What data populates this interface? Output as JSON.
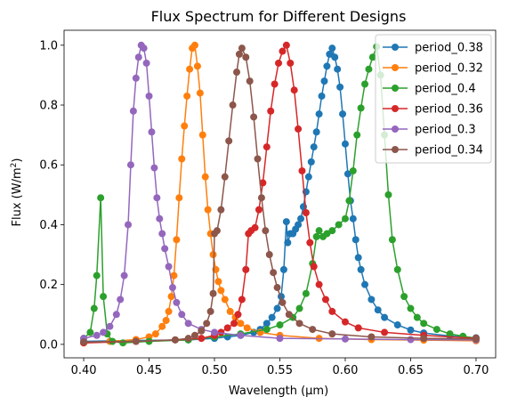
{
  "chart_data": {
    "type": "line",
    "title": "Flux Spectrum for Different Designs",
    "xlabel": "Wavelength (μm)",
    "ylabel_main": "Flux (W/m",
    "ylabel_sup": "2",
    "ylabel_close": ")",
    "xlim": [
      0.385,
      0.715
    ],
    "ylim": [
      -0.045,
      1.05
    ],
    "xticks": [
      0.4,
      0.45,
      0.5,
      0.55,
      0.6,
      0.65,
      0.7
    ],
    "xtick_labels": [
      "0.40",
      "0.45",
      "0.50",
      "0.55",
      "0.60",
      "0.65",
      "0.70"
    ],
    "yticks": [
      0.0,
      0.2,
      0.4,
      0.6,
      0.8,
      1.0
    ],
    "ytick_labels": [
      "0.0",
      "0.2",
      "0.4",
      "0.6",
      "0.8",
      "1.0"
    ],
    "grid": false,
    "legend_position": "top-right",
    "series": [
      {
        "name": "period_0.38",
        "color": "#1f77b4",
        "points": [
          [
            0.4,
            0.01
          ],
          [
            0.44,
            0.013
          ],
          [
            0.48,
            0.015
          ],
          [
            0.5,
            0.02
          ],
          [
            0.51,
            0.025
          ],
          [
            0.52,
            0.03
          ],
          [
            0.53,
            0.04
          ],
          [
            0.535,
            0.05
          ],
          [
            0.54,
            0.07
          ],
          [
            0.544,
            0.09
          ],
          [
            0.548,
            0.12
          ],
          [
            0.551,
            0.16
          ],
          [
            0.553,
            0.25
          ],
          [
            0.555,
            0.41
          ],
          [
            0.556,
            0.34
          ],
          [
            0.558,
            0.37
          ],
          [
            0.56,
            0.37
          ],
          [
            0.562,
            0.385
          ],
          [
            0.564,
            0.4
          ],
          [
            0.566,
            0.42
          ],
          [
            0.568,
            0.46
          ],
          [
            0.57,
            0.51
          ],
          [
            0.572,
            0.56
          ],
          [
            0.574,
            0.61
          ],
          [
            0.576,
            0.66
          ],
          [
            0.578,
            0.71
          ],
          [
            0.58,
            0.77
          ],
          [
            0.582,
            0.83
          ],
          [
            0.584,
            0.88
          ],
          [
            0.586,
            0.93
          ],
          [
            0.588,
            0.97
          ],
          [
            0.59,
            0.99
          ],
          [
            0.592,
            0.96
          ],
          [
            0.594,
            0.92
          ],
          [
            0.596,
            0.86
          ],
          [
            0.598,
            0.77
          ],
          [
            0.6,
            0.67
          ],
          [
            0.602,
            0.57
          ],
          [
            0.604,
            0.48
          ],
          [
            0.606,
            0.42
          ],
          [
            0.608,
            0.35
          ],
          [
            0.61,
            0.29
          ],
          [
            0.612,
            0.25
          ],
          [
            0.615,
            0.2
          ],
          [
            0.62,
            0.15
          ],
          [
            0.625,
            0.115
          ],
          [
            0.63,
            0.09
          ],
          [
            0.64,
            0.065
          ],
          [
            0.65,
            0.048
          ],
          [
            0.66,
            0.038
          ],
          [
            0.68,
            0.028
          ],
          [
            0.7,
            0.022
          ]
        ]
      },
      {
        "name": "period_0.32",
        "color": "#ff7f0e",
        "points": [
          [
            0.4,
            0.005
          ],
          [
            0.42,
            0.01
          ],
          [
            0.44,
            0.016
          ],
          [
            0.45,
            0.025
          ],
          [
            0.455,
            0.035
          ],
          [
            0.46,
            0.06
          ],
          [
            0.463,
            0.08
          ],
          [
            0.465,
            0.11
          ],
          [
            0.467,
            0.16
          ],
          [
            0.469,
            0.23
          ],
          [
            0.471,
            0.35
          ],
          [
            0.473,
            0.49
          ],
          [
            0.475,
            0.62
          ],
          [
            0.477,
            0.73
          ],
          [
            0.479,
            0.83
          ],
          [
            0.481,
            0.92
          ],
          [
            0.483,
            0.99
          ],
          [
            0.485,
            1.0
          ],
          [
            0.487,
            0.93
          ],
          [
            0.489,
            0.84
          ],
          [
            0.491,
            0.7
          ],
          [
            0.493,
            0.56
          ],
          [
            0.495,
            0.45
          ],
          [
            0.497,
            0.37
          ],
          [
            0.499,
            0.3
          ],
          [
            0.501,
            0.25
          ],
          [
            0.503,
            0.21
          ],
          [
            0.505,
            0.18
          ],
          [
            0.508,
            0.15
          ],
          [
            0.512,
            0.11
          ],
          [
            0.516,
            0.09
          ],
          [
            0.52,
            0.07
          ],
          [
            0.525,
            0.055
          ],
          [
            0.535,
            0.04
          ],
          [
            0.55,
            0.03
          ],
          [
            0.58,
            0.02
          ],
          [
            0.62,
            0.016
          ],
          [
            0.66,
            0.014
          ],
          [
            0.7,
            0.012
          ]
        ]
      },
      {
        "name": "period_0.4",
        "color": "#2ca02c",
        "points": [
          [
            0.4,
            0.02
          ],
          [
            0.405,
            0.04
          ],
          [
            0.408,
            0.12
          ],
          [
            0.41,
            0.23
          ],
          [
            0.413,
            0.49
          ],
          [
            0.415,
            0.16
          ],
          [
            0.418,
            0.035
          ],
          [
            0.422,
            0.01
          ],
          [
            0.43,
            0.005
          ],
          [
            0.45,
            0.01
          ],
          [
            0.48,
            0.015
          ],
          [
            0.5,
            0.025
          ],
          [
            0.52,
            0.035
          ],
          [
            0.54,
            0.05
          ],
          [
            0.55,
            0.065
          ],
          [
            0.56,
            0.09
          ],
          [
            0.565,
            0.12
          ],
          [
            0.57,
            0.17
          ],
          [
            0.575,
            0.27
          ],
          [
            0.578,
            0.36
          ],
          [
            0.58,
            0.38
          ],
          [
            0.583,
            0.36
          ],
          [
            0.586,
            0.37
          ],
          [
            0.59,
            0.38
          ],
          [
            0.595,
            0.4
          ],
          [
            0.6,
            0.42
          ],
          [
            0.603,
            0.48
          ],
          [
            0.606,
            0.58
          ],
          [
            0.609,
            0.7
          ],
          [
            0.612,
            0.79
          ],
          [
            0.615,
            0.87
          ],
          [
            0.618,
            0.92
          ],
          [
            0.621,
            0.96
          ],
          [
            0.624,
            0.995
          ],
          [
            0.627,
            0.9
          ],
          [
            0.63,
            0.7
          ],
          [
            0.633,
            0.5
          ],
          [
            0.636,
            0.35
          ],
          [
            0.64,
            0.25
          ],
          [
            0.645,
            0.16
          ],
          [
            0.65,
            0.12
          ],
          [
            0.655,
            0.09
          ],
          [
            0.66,
            0.07
          ],
          [
            0.67,
            0.05
          ],
          [
            0.68,
            0.035
          ],
          [
            0.69,
            0.027
          ],
          [
            0.7,
            0.02
          ]
        ]
      },
      {
        "name": "period_0.36",
        "color": "#d62728",
        "points": [
          [
            0.4,
            0.005
          ],
          [
            0.44,
            0.01
          ],
          [
            0.47,
            0.015
          ],
          [
            0.49,
            0.02
          ],
          [
            0.5,
            0.03
          ],
          [
            0.505,
            0.04
          ],
          [
            0.51,
            0.055
          ],
          [
            0.515,
            0.07
          ],
          [
            0.518,
            0.1
          ],
          [
            0.521,
            0.15
          ],
          [
            0.524,
            0.25
          ],
          [
            0.526,
            0.37
          ],
          [
            0.528,
            0.38
          ],
          [
            0.531,
            0.39
          ],
          [
            0.534,
            0.45
          ],
          [
            0.537,
            0.54
          ],
          [
            0.54,
            0.66
          ],
          [
            0.543,
            0.78
          ],
          [
            0.546,
            0.87
          ],
          [
            0.549,
            0.94
          ],
          [
            0.552,
            0.98
          ],
          [
            0.555,
            1.0
          ],
          [
            0.558,
            0.94
          ],
          [
            0.561,
            0.85
          ],
          [
            0.564,
            0.72
          ],
          [
            0.567,
            0.58
          ],
          [
            0.57,
            0.44
          ],
          [
            0.573,
            0.34
          ],
          [
            0.576,
            0.26
          ],
          [
            0.58,
            0.2
          ],
          [
            0.585,
            0.15
          ],
          [
            0.59,
            0.11
          ],
          [
            0.6,
            0.075
          ],
          [
            0.61,
            0.055
          ],
          [
            0.63,
            0.04
          ],
          [
            0.66,
            0.03
          ],
          [
            0.7,
            0.02
          ]
        ]
      },
      {
        "name": "period_0.3",
        "color": "#9467bd",
        "points": [
          [
            0.4,
            0.02
          ],
          [
            0.41,
            0.03
          ],
          [
            0.415,
            0.04
          ],
          [
            0.42,
            0.06
          ],
          [
            0.425,
            0.1
          ],
          [
            0.428,
            0.15
          ],
          [
            0.431,
            0.23
          ],
          [
            0.434,
            0.4
          ],
          [
            0.436,
            0.6
          ],
          [
            0.438,
            0.78
          ],
          [
            0.44,
            0.89
          ],
          [
            0.442,
            0.96
          ],
          [
            0.444,
            1.0
          ],
          [
            0.446,
            0.99
          ],
          [
            0.448,
            0.94
          ],
          [
            0.45,
            0.83
          ],
          [
            0.452,
            0.71
          ],
          [
            0.454,
            0.59
          ],
          [
            0.456,
            0.49
          ],
          [
            0.458,
            0.42
          ],
          [
            0.46,
            0.37
          ],
          [
            0.462,
            0.32
          ],
          [
            0.465,
            0.26
          ],
          [
            0.468,
            0.19
          ],
          [
            0.471,
            0.14
          ],
          [
            0.475,
            0.1
          ],
          [
            0.48,
            0.07
          ],
          [
            0.49,
            0.05
          ],
          [
            0.5,
            0.04
          ],
          [
            0.52,
            0.03
          ],
          [
            0.55,
            0.02
          ],
          [
            0.6,
            0.018
          ],
          [
            0.65,
            0.016
          ],
          [
            0.7,
            0.015
          ]
        ]
      },
      {
        "name": "period_0.34",
        "color": "#8c564b",
        "points": [
          [
            0.4,
            0.008
          ],
          [
            0.44,
            0.01
          ],
          [
            0.47,
            0.015
          ],
          [
            0.48,
            0.02
          ],
          [
            0.485,
            0.03
          ],
          [
            0.49,
            0.045
          ],
          [
            0.494,
            0.07
          ],
          [
            0.497,
            0.11
          ],
          [
            0.499,
            0.17
          ],
          [
            0.5,
            0.37
          ],
          [
            0.502,
            0.38
          ],
          [
            0.505,
            0.45
          ],
          [
            0.508,
            0.56
          ],
          [
            0.511,
            0.68
          ],
          [
            0.514,
            0.8
          ],
          [
            0.517,
            0.91
          ],
          [
            0.519,
            0.97
          ],
          [
            0.521,
            0.99
          ],
          [
            0.524,
            0.96
          ],
          [
            0.527,
            0.88
          ],
          [
            0.53,
            0.76
          ],
          [
            0.533,
            0.62
          ],
          [
            0.536,
            0.49
          ],
          [
            0.539,
            0.38
          ],
          [
            0.542,
            0.3
          ],
          [
            0.545,
            0.24
          ],
          [
            0.548,
            0.19
          ],
          [
            0.552,
            0.14
          ],
          [
            0.557,
            0.1
          ],
          [
            0.565,
            0.07
          ],
          [
            0.575,
            0.05
          ],
          [
            0.59,
            0.035
          ],
          [
            0.62,
            0.025
          ],
          [
            0.66,
            0.02
          ],
          [
            0.7,
            0.018
          ]
        ]
      }
    ]
  }
}
